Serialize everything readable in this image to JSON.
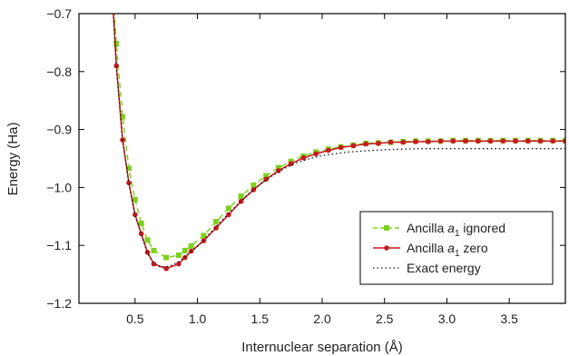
{
  "chart_data": {
    "type": "line",
    "xlabel": "Internuclear separation (Å)",
    "ylabel": "Energy (Ha)",
    "xlim": [
      0.05,
      3.95
    ],
    "ylim": [
      -1.2,
      -0.7
    ],
    "xticks": [
      0.5,
      1.0,
      1.5,
      2.0,
      2.5,
      3.0,
      3.5
    ],
    "xtick_labels": [
      "0.5",
      "1.0",
      "1.5",
      "2.0",
      "2.5",
      "3.0",
      "3.5"
    ],
    "yticks": [
      -1.2,
      -1.1,
      -1.0,
      -0.9,
      -0.8,
      -0.7
    ],
    "ytick_labels": [
      "−1.2",
      "−1.1",
      "−1.0",
      "−0.9",
      "−0.8",
      "−0.7"
    ],
    "legend_position": "lower-right",
    "series": [
      {
        "name": "Ancilla a1 ignored",
        "legend_prefix": "Ancilla ",
        "legend_italic": "a",
        "legend_sub": "1",
        "legend_suffix": " ignored",
        "color": "#7cd11f",
        "line_style": "dashed",
        "marker": "square",
        "x": [
          0.3,
          0.35,
          0.4,
          0.45,
          0.5,
          0.55,
          0.6,
          0.65,
          0.75,
          0.85,
          0.9,
          0.95,
          1.05,
          1.15,
          1.25,
          1.35,
          1.45,
          1.55,
          1.65,
          1.75,
          1.85,
          1.95,
          2.05,
          2.15,
          2.25,
          2.35,
          2.45,
          2.55,
          2.65,
          2.75,
          2.85,
          2.95,
          3.05,
          3.15,
          3.25,
          3.35,
          3.45,
          3.55,
          3.65,
          3.75,
          3.85,
          3.95
        ],
        "y": [
          -0.6,
          -0.752,
          -0.878,
          -0.967,
          -1.021,
          -1.062,
          -1.091,
          -1.109,
          -1.121,
          -1.117,
          -1.109,
          -1.101,
          -1.083,
          -1.059,
          -1.036,
          -1.015,
          -0.996,
          -0.98,
          -0.966,
          -0.955,
          -0.946,
          -0.939,
          -0.934,
          -0.93,
          -0.927,
          -0.924,
          -0.923,
          -0.922,
          -0.921,
          -0.92,
          -0.92,
          -0.92,
          -0.919,
          -0.919,
          -0.919,
          -0.919,
          -0.919,
          -0.919,
          -0.919,
          -0.919,
          -0.919,
          -0.919
        ]
      },
      {
        "name": "Ancilla a1 zero",
        "legend_prefix": "Ancilla ",
        "legend_italic": "a",
        "legend_sub": "1",
        "legend_suffix": " zero",
        "color": "#c8191e",
        "line_style": "solid",
        "marker": "circle",
        "x": [
          0.3,
          0.35,
          0.4,
          0.45,
          0.5,
          0.55,
          0.6,
          0.65,
          0.75,
          0.85,
          0.9,
          0.95,
          1.05,
          1.15,
          1.25,
          1.35,
          1.45,
          1.55,
          1.65,
          1.75,
          1.85,
          1.95,
          2.05,
          2.15,
          2.25,
          2.35,
          2.45,
          2.55,
          2.65,
          2.75,
          2.85,
          2.95,
          3.05,
          3.15,
          3.25,
          3.35,
          3.45,
          3.55,
          3.65,
          3.75,
          3.85,
          3.95
        ],
        "y": [
          -0.6,
          -0.79,
          -0.918,
          -0.992,
          -1.047,
          -1.08,
          -1.112,
          -1.132,
          -1.14,
          -1.132,
          -1.121,
          -1.11,
          -1.092,
          -1.07,
          -1.047,
          -1.024,
          -1.004,
          -0.986,
          -0.971,
          -0.959,
          -0.949,
          -0.942,
          -0.936,
          -0.931,
          -0.928,
          -0.925,
          -0.924,
          -0.922,
          -0.922,
          -0.921,
          -0.921,
          -0.92,
          -0.92,
          -0.92,
          -0.92,
          -0.92,
          -0.92,
          -0.92,
          -0.92,
          -0.92,
          -0.92,
          -0.92
        ]
      },
      {
        "name": "Exact energy",
        "legend_prefix": "Exact energy",
        "legend_italic": "",
        "legend_sub": "",
        "legend_suffix": "",
        "color": "#111111",
        "line_style": "dotted",
        "marker": "none",
        "x": [
          0.3,
          0.35,
          0.4,
          0.45,
          0.5,
          0.55,
          0.6,
          0.65,
          0.7,
          0.75,
          0.8,
          0.85,
          0.9,
          0.95,
          1.0,
          1.1,
          1.2,
          1.3,
          1.4,
          1.5,
          1.6,
          1.7,
          1.8,
          1.9,
          2.0,
          2.2,
          2.4,
          2.6,
          2.8,
          3.0,
          3.3,
          3.6,
          3.95
        ],
        "y": [
          -0.6,
          -0.79,
          -0.918,
          -0.992,
          -1.047,
          -1.082,
          -1.114,
          -1.131,
          -1.137,
          -1.137,
          -1.134,
          -1.128,
          -1.12,
          -1.111,
          -1.102,
          -1.079,
          -1.056,
          -1.034,
          -1.013,
          -0.995,
          -0.98,
          -0.967,
          -0.957,
          -0.95,
          -0.945,
          -0.939,
          -0.936,
          -0.934,
          -0.933,
          -0.933,
          -0.933,
          -0.933,
          -0.933
        ]
      }
    ]
  }
}
